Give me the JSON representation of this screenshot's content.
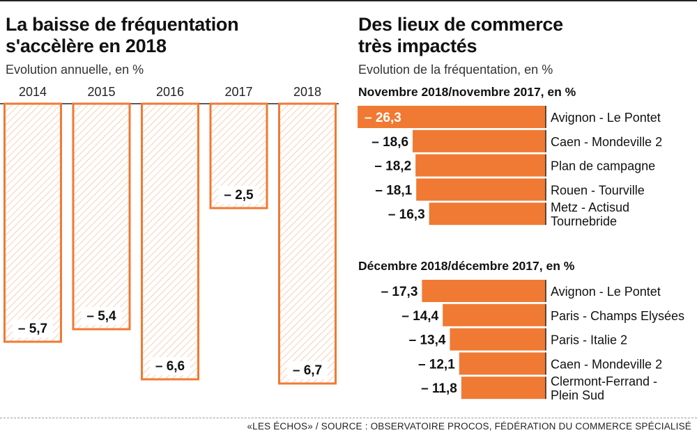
{
  "left": {
    "title_line1": "La baisse de fréquentation",
    "title_line2": "s'accèlère en 2018",
    "subtitle": "Evolution annuelle, en %"
  },
  "right": {
    "title_line1": "Des lieux de commerce",
    "title_line2": "très impactés",
    "subtitle": "Evolution de la fréquentation, en %"
  },
  "source": "«LES ÉCHOS» / SOURCE : OBSERVATOIRE PROCOS, FÉDÉRATION DU COMMERCE SPÉCIALISÉ",
  "colors": {
    "accent": "#f07a33",
    "hatch": "#f3b089",
    "text": "#111111"
  },
  "chart_data": [
    {
      "type": "bar",
      "orientation": "vertical",
      "categories": [
        "2014",
        "2015",
        "2016",
        "2017",
        "2018"
      ],
      "values": [
        -5.7,
        -5.4,
        -6.6,
        -2.5,
        -6.7
      ],
      "labels": [
        "– 5,7",
        "– 5,4",
        "– 6,6",
        "– 2,5",
        "– 6,7"
      ],
      "ylim": [
        -7,
        0
      ],
      "style": "hatched"
    },
    {
      "type": "bar",
      "orientation": "horizontal",
      "title": "Novembre 2018/novembre 2017, en %",
      "categories": [
        [
          "Avignon - Le Pontet"
        ],
        [
          "Caen - Mondeville 2"
        ],
        [
          "Plan de campagne"
        ],
        [
          "Rouen - Tourville"
        ],
        [
          "Metz - Actisud",
          "Tournebride"
        ]
      ],
      "values": [
        -26.3,
        -18.6,
        -18.2,
        -18.1,
        -16.3
      ],
      "labels": [
        "– 26,3",
        "– 18,6",
        "– 18,2",
        "– 18,1",
        "– 16,3"
      ],
      "xlim": [
        -26.3,
        0
      ]
    },
    {
      "type": "bar",
      "orientation": "horizontal",
      "title": "Décembre 2018/décembre 2017, en %",
      "categories": [
        [
          "Avignon - Le Pontet"
        ],
        [
          "Paris - Champs Elysées"
        ],
        [
          "Paris - Italie 2"
        ],
        [
          "Caen - Mondeville 2"
        ],
        [
          "Clermont-Ferrand -",
          "Plein Sud"
        ]
      ],
      "values": [
        -17.3,
        -14.4,
        -13.4,
        -12.1,
        -11.8
      ],
      "labels": [
        "– 17,3",
        "– 14,4",
        "– 13,4",
        "– 12,1",
        "– 11,8"
      ],
      "xlim": [
        -26.3,
        0
      ]
    }
  ]
}
